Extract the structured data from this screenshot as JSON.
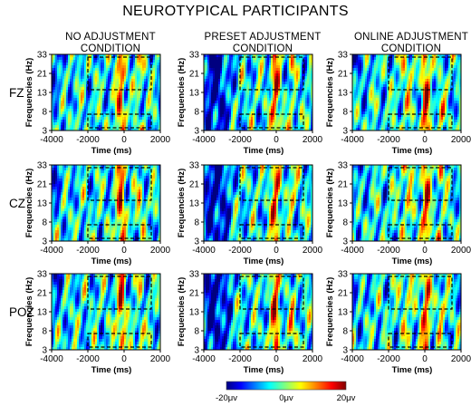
{
  "figure": {
    "title": "NEUROTYPICAL PARTICIPANTS",
    "conditions": [
      "NO ADJUSTMENT\nCONDITION",
      "PRESET ADJUSTMENT\nCONDITION",
      "ONLINE ADJUSTMENT\nCONDITION"
    ],
    "electrodes": [
      "FZ",
      "CZ",
      "POZ"
    ]
  },
  "chart_data": {
    "type": "heatmap",
    "title": "NEUROTYPICAL PARTICIPANTS",
    "xlabel": "Time (ms)",
    "ylabel": "Frequencies (Hz)",
    "x_ticks": [
      -4000,
      -2000,
      0,
      2000
    ],
    "y_ticks": [
      3,
      8,
      13,
      21,
      33
    ],
    "xlim": [
      -4000,
      2000
    ],
    "ylim": [
      3,
      33
    ],
    "colorbar": {
      "ticks": [
        "-20μv",
        "0μv",
        "20μv"
      ],
      "range": [
        -20,
        20
      ],
      "colors": [
        "#00007f",
        "#0000ff",
        "#00ffff",
        "#ffff00",
        "#ff0000",
        "#7f0000"
      ]
    },
    "panels": [
      {
        "electrode": "FZ",
        "condition": "NO ADJUSTMENT CONDITION"
      },
      {
        "electrode": "FZ",
        "condition": "PRESET ADJUSTMENT CONDITION"
      },
      {
        "electrode": "FZ",
        "condition": "ONLINE ADJUSTMENT CONDITION"
      },
      {
        "electrode": "CZ",
        "condition": "NO ADJUSTMENT CONDITION"
      },
      {
        "electrode": "CZ",
        "condition": "PRESET ADJUSTMENT CONDITION"
      },
      {
        "electrode": "CZ",
        "condition": "ONLINE ADJUSTMENT CONDITION"
      },
      {
        "electrode": "POZ",
        "condition": "NO ADJUSTMENT CONDITION"
      },
      {
        "electrode": "POZ",
        "condition": "PRESET ADJUSTMENT CONDITION"
      },
      {
        "electrode": "POZ",
        "condition": "ONLINE ADJUSTMENT CONDITION"
      }
    ],
    "highlight_windows": [
      {
        "time_ms": [
          -2000,
          1500
        ],
        "freq_hz": [
          13,
          33
        ]
      },
      {
        "time_ms": [
          -2000,
          1500
        ],
        "freq_hz": [
          3,
          8
        ]
      }
    ]
  }
}
